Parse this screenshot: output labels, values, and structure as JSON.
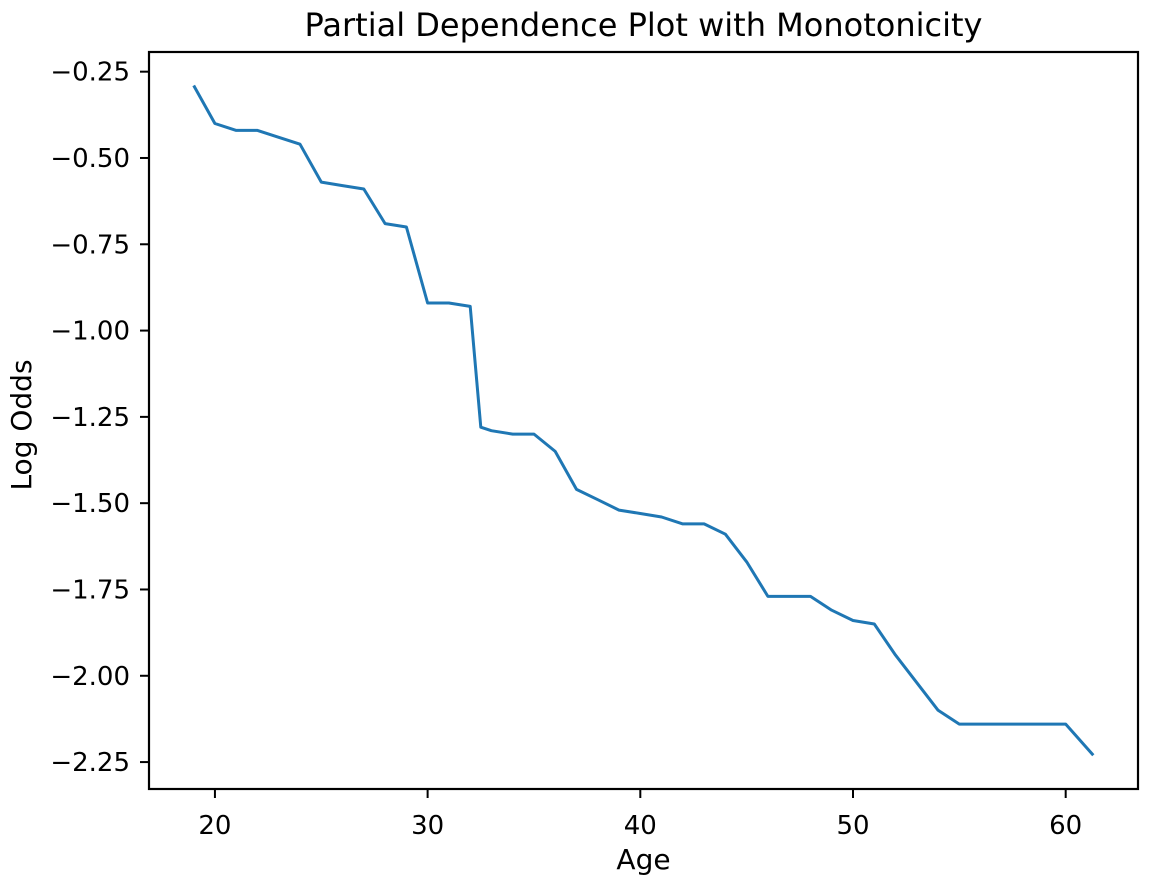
{
  "chart_data": {
    "type": "line",
    "title": "Partial Dependence Plot with Monotonicity",
    "xlabel": "Age",
    "ylabel": "Log Odds",
    "x": [
      19,
      20,
      21,
      22,
      23,
      24,
      25,
      26,
      27,
      28,
      29,
      30,
      31,
      32,
      32.5,
      33,
      34,
      35,
      36,
      37,
      38,
      39,
      40,
      41,
      42,
      43,
      44,
      45,
      46,
      47,
      48,
      49,
      50,
      51,
      52,
      53,
      54,
      55,
      56,
      57,
      58,
      59,
      60,
      61.3
    ],
    "y": [
      -0.29,
      -0.4,
      -0.42,
      -0.42,
      -0.44,
      -0.46,
      -0.57,
      -0.58,
      -0.59,
      -0.69,
      -0.7,
      -0.92,
      -0.92,
      -0.93,
      -1.28,
      -1.29,
      -1.3,
      -1.3,
      -1.35,
      -1.46,
      -1.49,
      -1.52,
      -1.53,
      -1.54,
      -1.56,
      -1.56,
      -1.59,
      -1.67,
      -1.77,
      -1.77,
      -1.77,
      -1.81,
      -1.84,
      -1.85,
      -1.94,
      -2.02,
      -2.1,
      -2.14,
      -2.14,
      -2.14,
      -2.14,
      -2.14,
      -2.14,
      -2.23
    ],
    "xlim": [
      16.9,
      63.4
    ],
    "ylim": [
      -2.328,
      -0.193
    ],
    "xticks": {
      "values": [
        20,
        30,
        40,
        50,
        60
      ],
      "labels": [
        "20",
        "30",
        "40",
        "50",
        "60"
      ]
    },
    "yticks": {
      "values": [
        -0.25,
        -0.5,
        -0.75,
        -1.0,
        -1.25,
        -1.5,
        -1.75,
        -2.0,
        -2.25
      ],
      "labels": [
        "−0.25",
        "−0.50",
        "−0.75",
        "−1.00",
        "−1.25",
        "−1.50",
        "−1.75",
        "−2.00",
        "−2.25"
      ]
    },
    "grid": false,
    "legend": null,
    "line_color": "#1f77b4",
    "spine_color": "#000000",
    "text_color": "#000000",
    "background": "#ffffff"
  }
}
